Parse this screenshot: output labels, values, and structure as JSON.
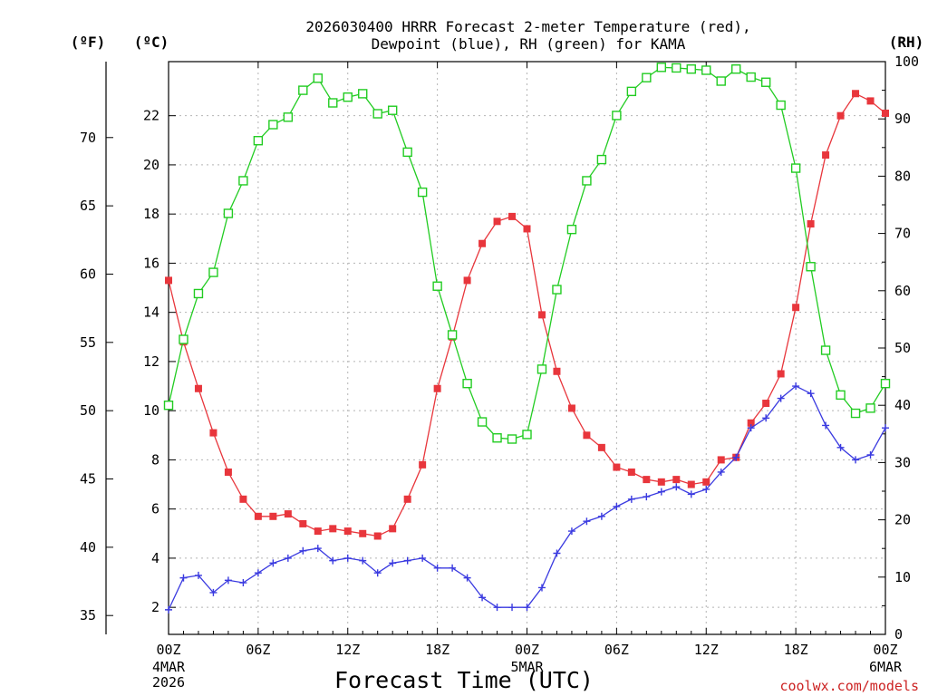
{
  "chart_data": {
    "type": "line",
    "title_line1": "2026030400 HRRR Forecast 2-meter Temperature (red),",
    "title_line2": "Dewpoint (blue), RH (green) for KAMA",
    "xlabel": "Forecast Time (UTC)",
    "credit": "coolwx.com/models",
    "unit_labels": {
      "fahrenheit": "(ºF)",
      "celsius": "(ºC)",
      "rh": "(RH)"
    },
    "x_range": [
      0,
      48
    ],
    "x_ticks": [
      {
        "x": 0,
        "label": "00Z",
        "sub": [
          "4MAR",
          "2026"
        ]
      },
      {
        "x": 6,
        "label": "06Z",
        "sub": []
      },
      {
        "x": 12,
        "label": "12Z",
        "sub": []
      },
      {
        "x": 18,
        "label": "18Z",
        "sub": []
      },
      {
        "x": 24,
        "label": "00Z",
        "sub": [
          "5MAR"
        ]
      },
      {
        "x": 30,
        "label": "06Z",
        "sub": []
      },
      {
        "x": 36,
        "label": "12Z",
        "sub": []
      },
      {
        "x": 42,
        "label": "18Z",
        "sub": []
      },
      {
        "x": 48,
        "label": "00Z",
        "sub": [
          "6MAR"
        ]
      }
    ],
    "celsius_axis": {
      "range": [
        0.9,
        24.2
      ],
      "ticks": [
        2,
        4,
        6,
        8,
        10,
        12,
        14,
        16,
        18,
        20,
        22
      ]
    },
    "fahrenheit_axis": {
      "ticks": [
        35,
        40,
        45,
        50,
        55,
        60,
        65,
        70
      ]
    },
    "rh_axis": {
      "range": [
        0,
        100
      ],
      "ticks": [
        0,
        10,
        20,
        30,
        40,
        50,
        60,
        70,
        80,
        90,
        100
      ]
    },
    "grid": true,
    "series": [
      {
        "key": "temperature",
        "axis": "celsius",
        "color": "#e8363c",
        "marker": "filled-square",
        "x": [
          0,
          1,
          2,
          3,
          4,
          5,
          6,
          7,
          8,
          9,
          10,
          11,
          12,
          13,
          14,
          15,
          16,
          17,
          18,
          19,
          20,
          21,
          22,
          23,
          24,
          25,
          26,
          27,
          28,
          29,
          30,
          31,
          32,
          33,
          34,
          35,
          36,
          37,
          38,
          39,
          40,
          41,
          42,
          43,
          44,
          45,
          46,
          47,
          48
        ],
        "values": [
          15.3,
          12.8,
          10.9,
          9.1,
          7.5,
          6.4,
          5.7,
          5.7,
          5.8,
          5.4,
          5.1,
          5.2,
          5.1,
          5.0,
          4.9,
          5.2,
          6.4,
          7.8,
          10.9,
          13.0,
          15.3,
          16.8,
          17.7,
          17.9,
          17.4,
          13.9,
          11.6,
          10.1,
          9.0,
          8.5,
          7.7,
          7.5,
          7.2,
          7.1,
          7.2,
          7.0,
          7.1,
          8.0,
          8.1,
          9.5,
          10.3,
          11.5,
          14.2,
          17.6,
          20.4,
          22.0,
          22.9,
          22.6,
          22.1
        ]
      },
      {
        "key": "dewpoint",
        "axis": "celsius",
        "color": "#3a3ae0",
        "marker": "plus",
        "x": [
          0,
          1,
          2,
          3,
          4,
          5,
          6,
          7,
          8,
          9,
          10,
          11,
          12,
          13,
          14,
          15,
          16,
          17,
          18,
          19,
          20,
          21,
          22,
          23,
          24,
          25,
          26,
          27,
          28,
          29,
          30,
          31,
          32,
          33,
          34,
          35,
          36,
          37,
          38,
          39,
          40,
          41,
          42,
          43,
          44,
          45,
          46,
          47,
          48
        ],
        "values": [
          1.9,
          3.2,
          3.3,
          2.6,
          3.1,
          3.0,
          3.4,
          3.8,
          4.0,
          4.3,
          4.4,
          3.9,
          4.0,
          3.9,
          3.4,
          3.8,
          3.9,
          4.0,
          3.6,
          3.6,
          3.2,
          2.4,
          2.0,
          2.0,
          2.0,
          2.8,
          4.2,
          5.1,
          5.5,
          5.7,
          6.1,
          6.4,
          6.5,
          6.7,
          6.9,
          6.6,
          6.8,
          7.5,
          8.1,
          9.3,
          9.7,
          10.5,
          11.0,
          10.7,
          9.4,
          8.5,
          8.0,
          8.2,
          9.3
        ]
      },
      {
        "key": "rh",
        "axis": "rh",
        "color": "#22cc22",
        "marker": "open-square",
        "x": [
          0,
          1,
          2,
          3,
          4,
          5,
          6,
          7,
          8,
          9,
          10,
          11,
          12,
          13,
          14,
          15,
          16,
          17,
          18,
          19,
          20,
          21,
          22,
          23,
          24,
          25,
          26,
          27,
          28,
          29,
          30,
          31,
          32,
          33,
          34,
          35,
          36,
          37,
          38,
          39,
          40,
          41,
          42,
          43,
          44,
          45,
          46,
          47,
          48
        ],
        "values": [
          40,
          51.5,
          59.5,
          63.2,
          73.5,
          79.2,
          86.2,
          89,
          90.3,
          95,
          97.1,
          92.8,
          93.8,
          94.4,
          90.9,
          91.5,
          84.2,
          77.2,
          60.8,
          52.3,
          43.8,
          37.1,
          34.3,
          34.1,
          34.9,
          46.3,
          60.2,
          70.7,
          79.2,
          82.9,
          90.6,
          94.8,
          97.2,
          99.0,
          98.9,
          98.7,
          98.5,
          96.6,
          98.7,
          97.3,
          96.4,
          92.4,
          81.4,
          64.2,
          49.6,
          41.8,
          38.6,
          39.5,
          43.8
        ]
      }
    ]
  }
}
